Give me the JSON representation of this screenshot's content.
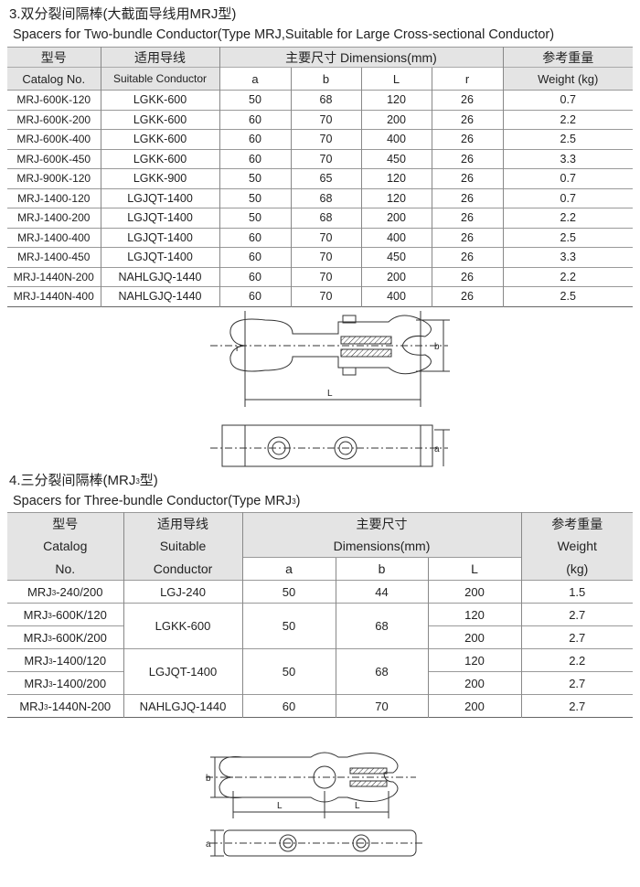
{
  "section3": {
    "title": "3.双分裂间隔棒(大截面导线用MRJ型)",
    "subtitle": "Spacers for Two-bundle Conductor(Type MRJ,Suitable for Large Cross-sectional Conductor)",
    "headers": {
      "model_cn": "型号",
      "model_en": "Catalog No.",
      "conductor_cn": "适用导线",
      "conductor_en": "Suitable Conductor",
      "dims": "主要尺寸 Dimensions(mm)",
      "a": "a",
      "b": "b",
      "L": "L",
      "r": "r",
      "weight_cn": "参考重量",
      "weight_en": "Weight (kg)"
    },
    "rows": [
      [
        "MRJ-600K-120",
        "LGKK-600",
        "50",
        "68",
        "120",
        "26",
        "0.7"
      ],
      [
        "MRJ-600K-200",
        "LGKK-600",
        "60",
        "70",
        "200",
        "26",
        "2.2"
      ],
      [
        "MRJ-600K-400",
        "LGKK-600",
        "60",
        "70",
        "400",
        "26",
        "2.5"
      ],
      [
        "MRJ-600K-450",
        "LGKK-600",
        "60",
        "70",
        "450",
        "26",
        "3.3"
      ],
      [
        "MRJ-900K-120",
        "LGKK-900",
        "50",
        "65",
        "120",
        "26",
        "0.7"
      ],
      [
        "MRJ-1400-120",
        "LGJQT-1400",
        "50",
        "68",
        "120",
        "26",
        "0.7"
      ],
      [
        "MRJ-1400-200",
        "LGJQT-1400",
        "50",
        "68",
        "200",
        "26",
        "2.2"
      ],
      [
        "MRJ-1400-400",
        "LGJQT-1400",
        "60",
        "70",
        "400",
        "26",
        "2.5"
      ],
      [
        "MRJ-1400-450",
        "LGJQT-1400",
        "60",
        "70",
        "450",
        "26",
        "3.3"
      ],
      [
        "MRJ-1440N-200",
        "NAHLGJQ-1440",
        "60",
        "70",
        "200",
        "26",
        "2.2"
      ],
      [
        "MRJ-1440N-400",
        "NAHLGJQ-1440",
        "60",
        "70",
        "400",
        "26",
        "2.5"
      ]
    ],
    "drawing_labels": {
      "r": "r",
      "b": "b",
      "L": "L",
      "a": "a"
    }
  },
  "section4": {
    "title_pre": "4.三分裂间隔棒(MRJ",
    "title_sub": "3",
    "title_post": "型)",
    "subtitle_pre": "Spacers for Three-bundle Conductor(Type MRJ",
    "subtitle_sub": "3",
    "subtitle_post": ")",
    "headers": {
      "model_cn": "型号",
      "model_en1": "Catalog",
      "model_en2": "No.",
      "conductor_cn": "适用导线",
      "conductor_en1": "Suitable",
      "conductor_en2": "Conductor",
      "dims_cn": "主要尺寸",
      "dims_en": "Dimensions(mm)",
      "a": "a",
      "b": "b",
      "L": "L",
      "weight_cn": "参考重量",
      "weight_en": "Weight",
      "weight_unit": "(kg)"
    },
    "model_prefix": "MRJ",
    "model_sub": "3",
    "rows": [
      {
        "model": "-240/200",
        "conductor": "LGJ-240",
        "a": "50",
        "b": "44",
        "L": "200",
        "weight": "1.5"
      },
      {
        "model": "-600K/120",
        "conductor": "LGKK-600",
        "a": "50",
        "b": "68",
        "L": "120",
        "weight": "2.7"
      },
      {
        "model": "-600K/200",
        "L": "200",
        "weight": "2.7"
      },
      {
        "model": "-1400/120",
        "conductor": "LGJQT-1400",
        "a": "50",
        "b": "68",
        "L": "120",
        "weight": "2.2"
      },
      {
        "model": "-1400/200",
        "L": "200",
        "weight": "2.7"
      },
      {
        "model": "-1440N-200",
        "conductor": "NAHLGJQ-1440",
        "a": "60",
        "b": "70",
        "L": "200",
        "weight": "2.7"
      }
    ],
    "drawing_labels": {
      "b": "b",
      "L1": "L",
      "L2": "L",
      "a": "a"
    }
  }
}
